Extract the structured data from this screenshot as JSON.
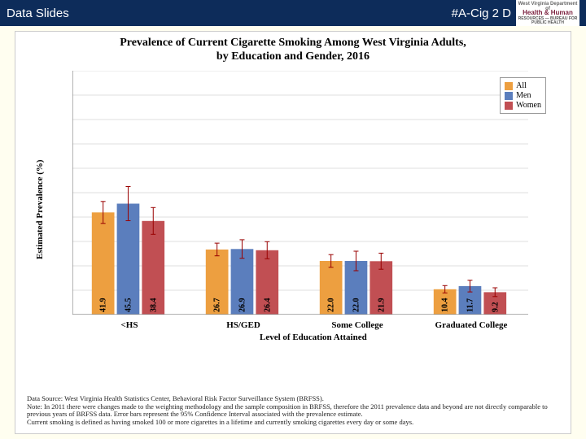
{
  "header": {
    "left": "Data Slides",
    "right": "#A-Cig 2 D",
    "logo_top": "West Virginia Department of",
    "logo_main": "Health & Human",
    "logo_sub": "RESOURCES — BUREAU FOR PUBLIC HEALTH"
  },
  "chart": {
    "type": "bar",
    "title_line1": "Prevalence of Current Cigarette Smoking Among West Virginia Adults,",
    "title_line2": "by Education and Gender, 2016",
    "y_label": "Estimated Prevalence (%)",
    "x_label": "Level of Education Attained",
    "categories": [
      "<HS",
      "HS/GED",
      "Some College",
      "Graduated College"
    ],
    "series": [
      {
        "name": "All",
        "color": "#ed9f40",
        "values": [
          41.9,
          26.7,
          22.0,
          10.4
        ],
        "err": [
          4.5,
          2.6,
          2.6,
          1.5
        ]
      },
      {
        "name": "Men",
        "color": "#5b7ebd",
        "values": [
          45.5,
          26.9,
          22.0,
          11.7
        ],
        "err": [
          7.0,
          3.8,
          4.0,
          2.4
        ]
      },
      {
        "name": "Women",
        "color": "#c14f53",
        "values": [
          38.4,
          26.4,
          21.9,
          9.2
        ],
        "err": [
          5.5,
          3.5,
          3.3,
          1.8
        ]
      }
    ],
    "ylim": [
      0,
      100
    ],
    "ytick_step": 10,
    "grid_color": "#bfbfbf",
    "bar_width": 0.22,
    "plot_bg": "#ffffff",
    "err_color": "#990000",
    "axis_color": "#808080",
    "label_fontsize": 10
  },
  "footnotes": {
    "l1": "Data Source: West Virginia Health Statistics Center, Behavioral Risk Factor Surveillance System (BRFSS).",
    "l2": "Note: In 2011 there were changes made to the weighting methodology and the sample composition in BRFSS, therefore the 2011 prevalence data and beyond are not directly comparable to previous years of BRFSS data. Error bars represent the 95% Confidence Interval associated with the prevalence estimate.",
    "l3": "Current smoking is defined as having smoked 100 or more cigarettes in a lifetime and currently smoking cigarettes every day or some days."
  }
}
